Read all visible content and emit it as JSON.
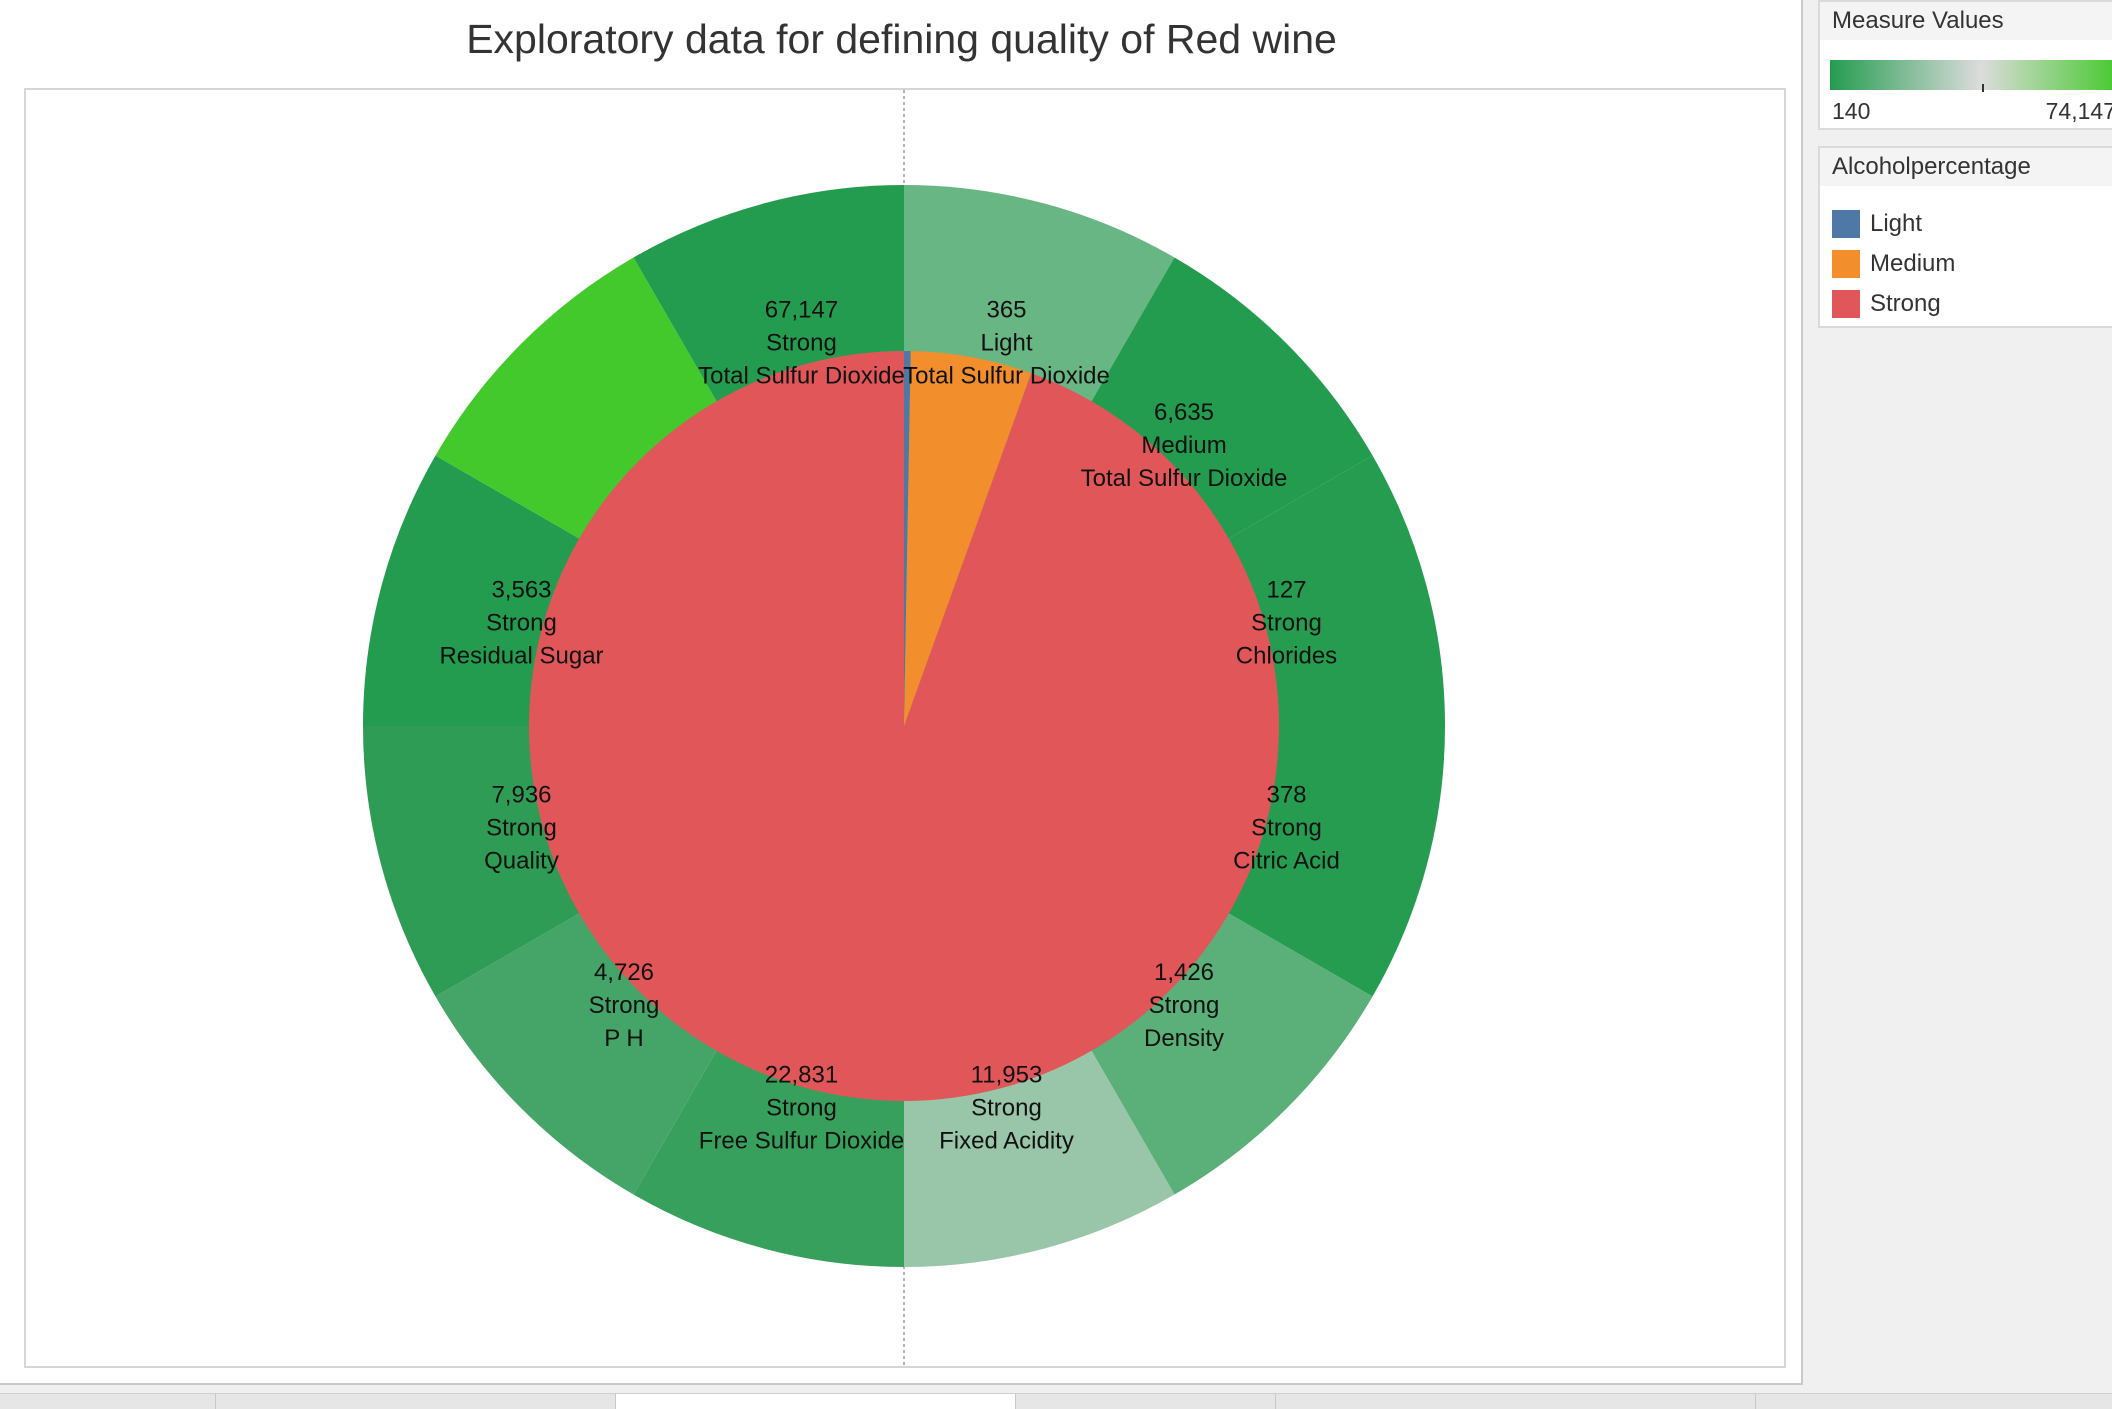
{
  "chart_data": {
    "type": "pie",
    "title": "Exploratory data for defining quality of Red wine",
    "inner_pie": {
      "slices": [
        {
          "label": "Light",
          "value": 365,
          "color": "#4e79a7"
        },
        {
          "label": "Medium",
          "value": 6635,
          "color": "#f28e2b"
        },
        {
          "label": "Strong",
          "value": 120087,
          "color": "#e15759"
        }
      ]
    },
    "outer_ring": {
      "slices": [
        {
          "value": 365,
          "value_label": "365",
          "alcohol": "Light",
          "measure": "Total Sulfur Dioxide",
          "color": "#69b685"
        },
        {
          "value": 6635,
          "value_label": "6,635",
          "alcohol": "Medium",
          "measure": "Total Sulfur Dioxide",
          "color": "#249c4f"
        },
        {
          "value": 127,
          "value_label": "127",
          "alcohol": "Strong",
          "measure": "Chlorides",
          "color": "#259c50"
        },
        {
          "value": 378,
          "value_label": "378",
          "alcohol": "Strong",
          "measure": "Citric Acid",
          "color": "#259c50"
        },
        {
          "value": 1426,
          "value_label": "1,426",
          "alcohol": "Strong",
          "measure": "Density",
          "color": "#5baf79"
        },
        {
          "value": 11953,
          "value_label": "11,953",
          "alcohol": "Strong",
          "measure": "Fixed Acidity",
          "color": "#99c5a8"
        },
        {
          "value": 22831,
          "value_label": "22,831",
          "alcohol": "Strong",
          "measure": "Free Sulfur Dioxide",
          "color": "#38a05d"
        },
        {
          "value": 4726,
          "value_label": "4,726",
          "alcohol": "Strong",
          "measure": "P H",
          "color": "#45a569"
        },
        {
          "value": 7936,
          "value_label": "7,936",
          "alcohol": "Strong",
          "measure": "Quality",
          "color": "#2e9c55"
        },
        {
          "value": 3563,
          "value_label": "3,563",
          "alcohol": "Strong",
          "measure": "Residual Sugar",
          "color": "#249c4f"
        },
        {
          "value": 74147,
          "value_label": "",
          "alcohol": "",
          "measure": "",
          "color": "#44c92c"
        },
        {
          "value": 67147,
          "value_label": "67,147",
          "alcohol": "Strong",
          "measure": "Total Sulfur Dioxide",
          "color": "#249c4f"
        }
      ]
    }
  },
  "legend": {
    "measure_values": {
      "title": "Measure Values",
      "min_label": "140",
      "max_label": "74,147",
      "colors": [
        "#249c4f",
        "#dcdcdc",
        "#44c92c"
      ]
    },
    "alcohol": {
      "title": "Alcoholpercentage",
      "items": [
        {
          "label": "Light",
          "color": "#4e79a7"
        },
        {
          "label": "Medium",
          "color": "#f28e2b"
        },
        {
          "label": "Strong",
          "color": "#e15759"
        }
      ]
    }
  }
}
